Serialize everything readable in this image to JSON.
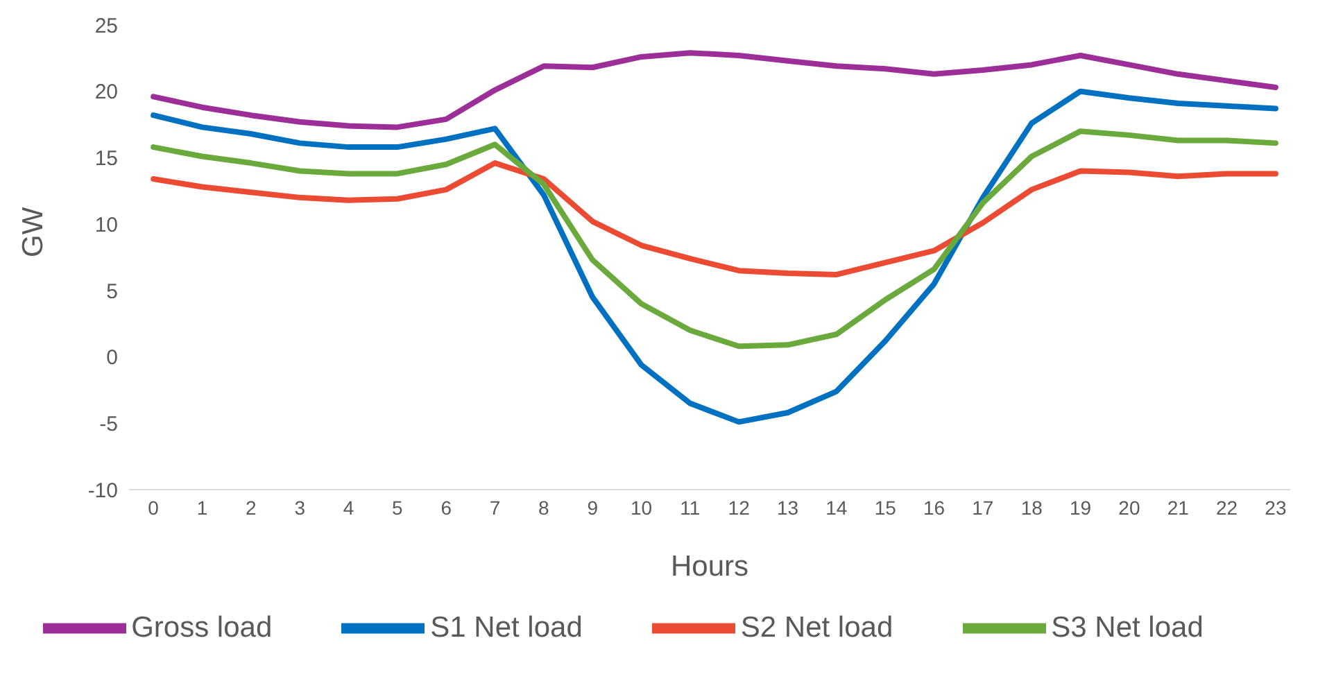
{
  "chart_data": {
    "type": "line",
    "xlabel": "Hours",
    "ylabel": "GW",
    "x": [
      0,
      1,
      2,
      3,
      4,
      5,
      6,
      7,
      8,
      9,
      10,
      11,
      12,
      13,
      14,
      15,
      16,
      17,
      18,
      19,
      20,
      21,
      22,
      23
    ],
    "xlim": [
      -0.5,
      23.3
    ],
    "xticks": [
      0,
      1,
      2,
      3,
      4,
      5,
      6,
      7,
      8,
      9,
      10,
      11,
      12,
      13,
      14,
      15,
      16,
      17,
      18,
      19,
      20,
      21,
      22,
      23
    ],
    "series": [
      {
        "name": "Gross load",
        "color": "#9c2e98",
        "values": [
          19.6,
          18.8,
          18.2,
          17.7,
          17.4,
          17.3,
          17.9,
          20.1,
          21.9,
          21.8,
          22.6,
          22.9,
          22.7,
          22.3,
          21.9,
          21.7,
          21.3,
          21.6,
          22.0,
          22.7,
          22.0,
          21.3,
          20.8,
          20.3
        ]
      },
      {
        "name": "S1 Net load",
        "color": "#0070c0",
        "values": [
          18.2,
          17.3,
          16.8,
          16.1,
          15.8,
          15.8,
          16.4,
          17.2,
          12.2,
          4.5,
          -0.6,
          -3.5,
          -4.9,
          -4.2,
          -2.6,
          1.2,
          5.5,
          12.0,
          17.6,
          20.0,
          19.5,
          19.1,
          18.9,
          18.7
        ]
      },
      {
        "name": "S2 Net load",
        "color": "#ea4b32",
        "values": [
          13.4,
          12.8,
          12.4,
          12.0,
          11.8,
          11.9,
          12.6,
          14.6,
          13.4,
          10.2,
          8.4,
          7.4,
          6.5,
          6.3,
          6.2,
          7.1,
          8.0,
          10.1,
          12.6,
          14.0,
          13.9,
          13.6,
          13.8,
          13.8
        ]
      },
      {
        "name": "S3 Net load",
        "color": "#6aa93c",
        "values": [
          15.8,
          15.1,
          14.6,
          14.0,
          13.8,
          13.8,
          14.5,
          16.0,
          13.0,
          7.3,
          4.0,
          2.0,
          0.8,
          0.9,
          1.7,
          4.3,
          6.6,
          11.6,
          15.1,
          17.0,
          16.7,
          16.3,
          16.3,
          16.1
        ]
      }
    ],
    "ylim": [
      -10,
      25
    ],
    "yticks": [
      -10,
      -5,
      0,
      5,
      10,
      15,
      20,
      25
    ],
    "grid": false,
    "legend": "bottom",
    "marker": "none",
    "line_style": "solid"
  }
}
